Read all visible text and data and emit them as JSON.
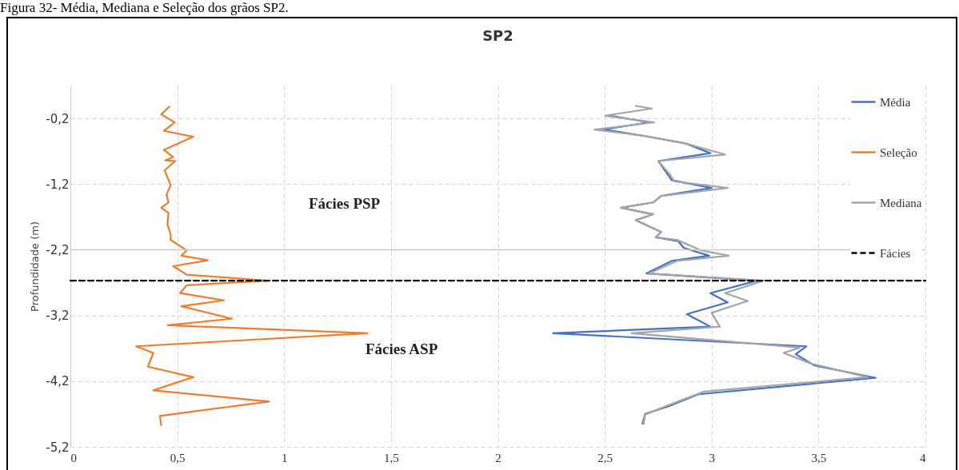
{
  "chart_data": {
    "type": "line",
    "title": "SP2",
    "ylabel": "Profundidade (m)",
    "annotations": [
      "Figura 32- Média, Mediana e Seleção dos grãos SP2.",
      "Fácies PSP",
      "Fácies ASP"
    ],
    "xlim": [
      0,
      4
    ],
    "ylim": [
      -5.2,
      0.3
    ],
    "xticks": [
      0,
      {
        "value": 0.5,
        "label": "0,5"
      },
      1,
      {
        "value": 1.5,
        "label": "1,5"
      },
      2,
      {
        "value": 2.5,
        "label": "2,5"
      },
      3,
      {
        "value": 3.5,
        "label": "3,5"
      },
      4
    ],
    "yticks": [
      {
        "value": -0.2,
        "label": "-0,2"
      },
      {
        "value": -1.2,
        "label": "-1,2"
      },
      {
        "value": -2.2,
        "label": "-2,2"
      },
      {
        "value": -3.2,
        "label": "-3,2"
      },
      {
        "value": -4.2,
        "label": "-4,2"
      },
      {
        "value": -5.2,
        "label": "-5,2"
      }
    ],
    "grid": true,
    "legend": "top right",
    "marker": "none",
    "ref_lines": [
      {
        "axis": "y",
        "value": -2.2,
        "color": "#c8c8c8",
        "line_style": "solid"
      }
    ],
    "series": [
      {
        "name": "Média",
        "color": "#4472c4",
        "line_style": "solid",
        "x": [
          2.526,
          2.707,
          2.495,
          2.689,
          2.876,
          2.994,
          2.751,
          2.813,
          3.0,
          2.764,
          2.726,
          2.576,
          2.726,
          2.645,
          2.764,
          2.738,
          2.844,
          2.869,
          2.988,
          2.813,
          2.695,
          3.212,
          2.994,
          3.075,
          2.884,
          2.994,
          2.258,
          3.443,
          3.393,
          3.48,
          3.767,
          2.938,
          2.801,
          2.689,
          2.676
        ],
        "values": [
          -0.16,
          -0.26,
          -0.37,
          -0.47,
          -0.58,
          -0.73,
          -0.85,
          -1.14,
          -1.26,
          -1.38,
          -1.48,
          -1.56,
          -1.66,
          -1.75,
          -1.93,
          -2.01,
          -2.07,
          -2.17,
          -2.29,
          -2.37,
          -2.56,
          -2.67,
          -2.86,
          -3.0,
          -3.18,
          -3.37,
          -3.47,
          -3.67,
          -3.79,
          -3.96,
          -4.15,
          -4.4,
          -4.58,
          -4.7,
          -4.85
        ]
      },
      {
        "name": "Seleção",
        "color": "#ed7d31",
        "line_style": "solid",
        "x": [
          0.463,
          0.425,
          0.488,
          0.438,
          0.575,
          0.438,
          0.481,
          0.444,
          0.491,
          0.441,
          0.469,
          0.45,
          0.459,
          0.425,
          0.459,
          0.454,
          0.469,
          0.469,
          0.544,
          0.519,
          0.643,
          0.481,
          0.544,
          0.924,
          0.544,
          0.513,
          0.718,
          0.519,
          0.756,
          0.456,
          1.39,
          0.307,
          0.388,
          0.363,
          0.575,
          0.388,
          0.93,
          0.419,
          0.425
        ],
        "values": [
          -0.02,
          -0.14,
          -0.26,
          -0.39,
          -0.48,
          -0.68,
          -0.79,
          -0.84,
          -0.85,
          -0.99,
          -1.22,
          -1.36,
          -1.48,
          -1.56,
          -1.64,
          -1.81,
          -1.97,
          -2.05,
          -2.21,
          -2.29,
          -2.36,
          -2.45,
          -2.58,
          -2.67,
          -2.74,
          -2.86,
          -2.97,
          -3.06,
          -3.25,
          -3.35,
          -3.47,
          -3.67,
          -3.77,
          -3.98,
          -4.14,
          -4.34,
          -4.51,
          -4.73,
          -4.87
        ]
      },
      {
        "name": "Mediana",
        "color": "#a5a5a5",
        "line_style": "solid",
        "x": [
          2.645,
          2.72,
          2.502,
          2.732,
          2.452,
          2.689,
          2.876,
          3.063,
          2.751,
          2.801,
          2.826,
          3.075,
          2.764,
          2.726,
          2.576,
          2.726,
          2.645,
          2.764,
          2.738,
          2.838,
          2.95,
          3.081,
          2.838,
          2.707,
          3.243,
          3.063,
          3.169,
          3.0,
          3.038,
          2.626,
          3.412,
          3.337,
          3.462,
          3.73,
          2.963,
          2.801,
          2.689,
          2.682
        ],
        "values": [
          -0.01,
          -0.05,
          -0.16,
          -0.26,
          -0.37,
          -0.47,
          -0.58,
          -0.75,
          -0.85,
          -1.04,
          -1.16,
          -1.26,
          -1.38,
          -1.48,
          -1.56,
          -1.66,
          -1.75,
          -1.93,
          -2.01,
          -2.05,
          -2.21,
          -2.29,
          -2.37,
          -2.56,
          -2.67,
          -2.86,
          -2.98,
          -3.16,
          -3.37,
          -3.47,
          -3.69,
          -3.77,
          -3.93,
          -4.14,
          -4.36,
          -4.56,
          -4.71,
          -4.85
        ]
      },
      {
        "name": "Fácies",
        "color": "#000000",
        "line_style": "dashed",
        "x": [
          0,
          4
        ],
        "values": [
          -2.67,
          -2.67
        ]
      }
    ]
  }
}
